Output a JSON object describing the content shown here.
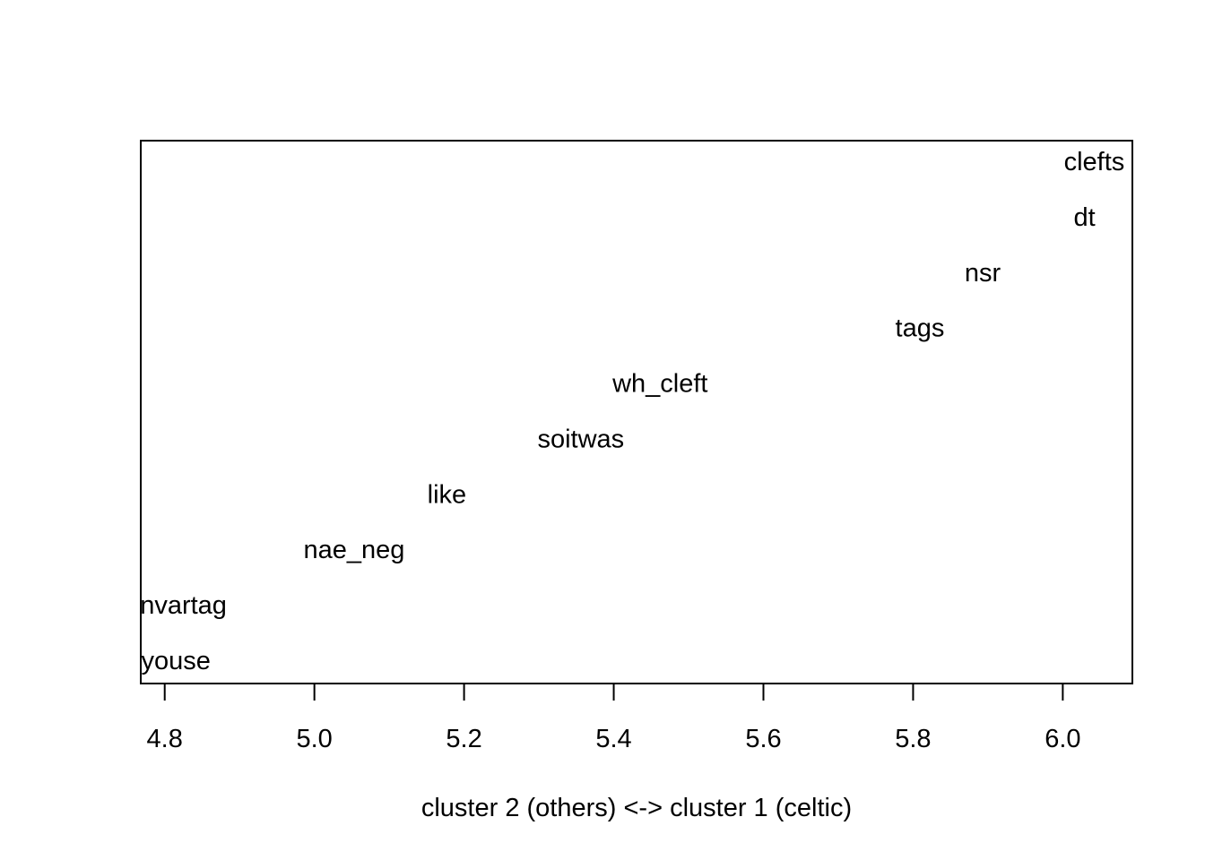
{
  "chart_data": {
    "type": "scatter",
    "xlabel": "cluster 2 (others) <-> cluster 1 (celtic)",
    "ylabel": "",
    "title": "",
    "xlim": [
      4.768,
      6.093
    ],
    "x_ticks": [
      "4.8",
      "5.0",
      "5.2",
      "5.4",
      "5.6",
      "5.8",
      "6.0"
    ],
    "grid": false,
    "points": [
      {
        "label": "youse",
        "x": 4.815,
        "rank": 1
      },
      {
        "label": "nvartag",
        "x": 4.825,
        "rank": 2
      },
      {
        "label": "nae_neg",
        "x": 5.053,
        "rank": 3
      },
      {
        "label": "like",
        "x": 5.177,
        "rank": 4
      },
      {
        "label": "soitwas",
        "x": 5.356,
        "rank": 5
      },
      {
        "label": "wh_cleft",
        "x": 5.462,
        "rank": 6
      },
      {
        "label": "tags",
        "x": 5.809,
        "rank": 7
      },
      {
        "label": "nsr",
        "x": 5.893,
        "rank": 8
      },
      {
        "label": "dt",
        "x": 6.029,
        "rank": 9
      },
      {
        "label": "clefts",
        "x": 6.042,
        "rank": 10
      }
    ]
  }
}
